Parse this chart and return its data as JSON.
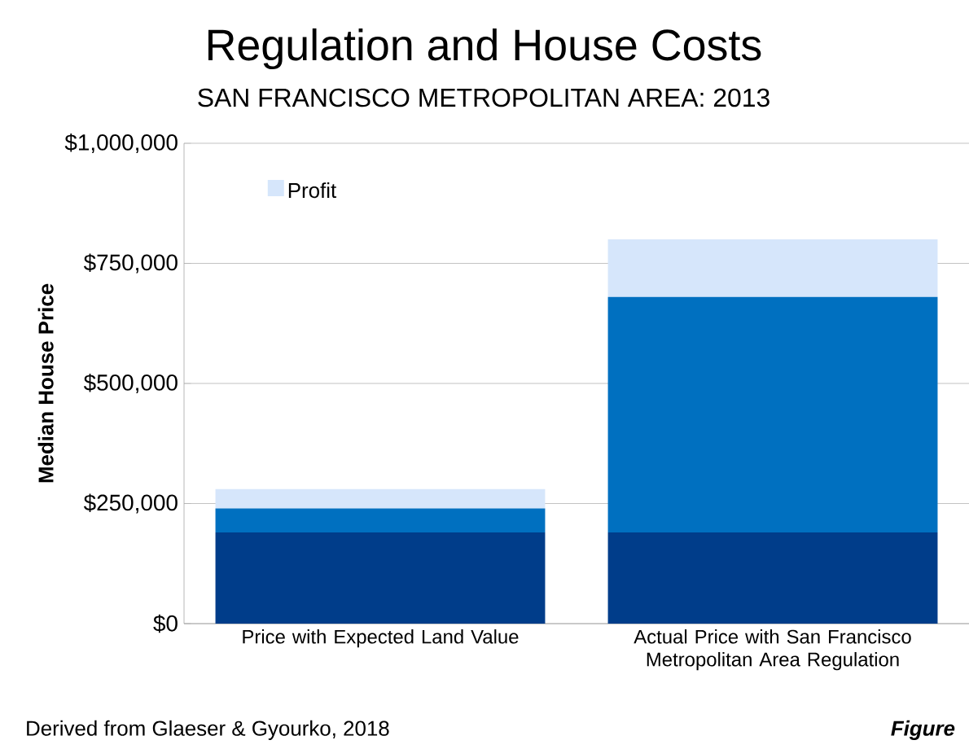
{
  "chart_data": {
    "type": "bar",
    "stacked": true,
    "title": "Regulation and House Costs",
    "subtitle": "SAN FRANCISCO METROPOLITAN AREA: 2013",
    "ylabel": "Median  House Price",
    "categories": [
      "Price with Expected Land Value",
      "Actual Price with San Francisco Metropolitan Area Regulation"
    ],
    "series": [
      {
        "color": "#003d8a",
        "values": [
          190000,
          190000
        ]
      },
      {
        "color": "#0070c0",
        "values": [
          50000,
          490000
        ]
      },
      {
        "name": "Profit",
        "color": "#d6e6fb",
        "values": [
          40000,
          120000
        ]
      }
    ],
    "ylim": [
      0,
      1000000
    ],
    "yticks": [
      {
        "value": 0,
        "label": "$0"
      },
      {
        "value": 250000,
        "label": "$250,000"
      },
      {
        "value": 500000,
        "label": "$500,000"
      },
      {
        "value": 750000,
        "label": "$750,000"
      },
      {
        "value": 1000000,
        "label": "$1,000,000"
      }
    ],
    "grid": "y",
    "legend": "top left",
    "annotations": [
      "Derived from Glaeser & Gyourko, 2018",
      "Figure"
    ]
  }
}
